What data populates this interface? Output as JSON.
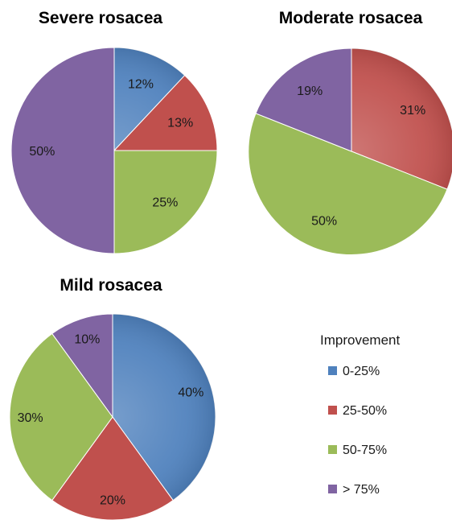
{
  "chart_data": [
    {
      "type": "pie",
      "title": "Severe rosacea",
      "categories": [
        "0-25%",
        "25-50%",
        "50-75%",
        "> 75%"
      ],
      "values": [
        12,
        13,
        25,
        50
      ],
      "labels": [
        "12%",
        "13%",
        "25%",
        "50%"
      ]
    },
    {
      "type": "pie",
      "title": "Moderate rosacea",
      "categories": [
        "25-50%",
        "50-75%",
        "> 75%"
      ],
      "values": [
        31,
        50,
        19
      ],
      "labels": [
        "31%",
        "50%",
        "19%"
      ]
    },
    {
      "type": "pie",
      "title": "Mild rosacea",
      "categories": [
        "0-25%",
        "25-50%",
        "50-75%",
        "> 75%"
      ],
      "values": [
        40,
        20,
        30,
        10
      ],
      "labels": [
        "40%",
        "20%",
        "30%",
        "10%"
      ]
    }
  ],
  "legend": {
    "title": "Improvement",
    "placement": "bottom-right",
    "items": [
      {
        "label": "0-25%",
        "color": "#4f81bd"
      },
      {
        "label": "25-50%",
        "color": "#c0504d"
      },
      {
        "label": "50-75%",
        "color": "#9bbb59"
      },
      {
        "label": "> 75%",
        "color": "#8064a2"
      }
    ]
  }
}
